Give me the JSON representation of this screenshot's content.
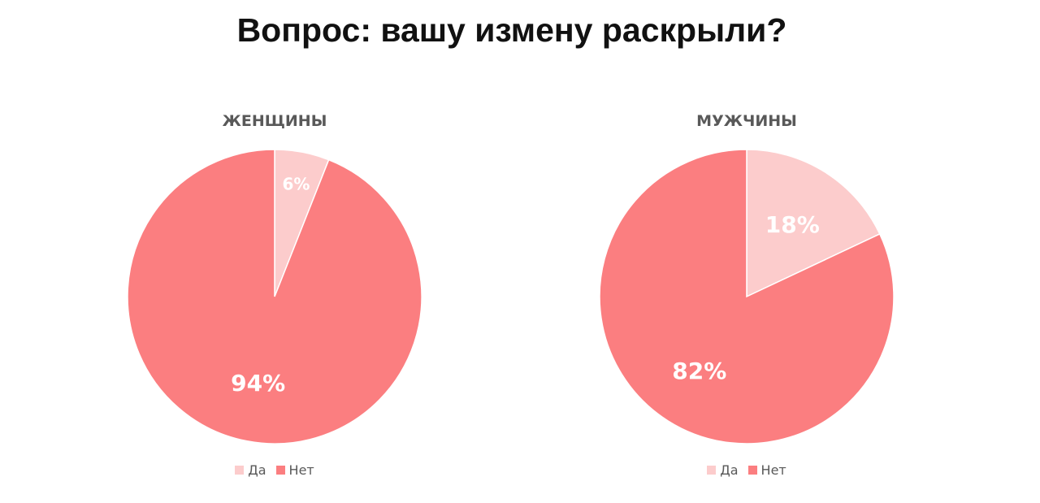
{
  "title": "Вопрос: вашу измену раскрыли?",
  "colors": {
    "yes": "#fccccc",
    "no": "#fb7e80",
    "text_dark": "#111111",
    "text_gray": "#595959"
  },
  "chart_data": [
    {
      "type": "pie",
      "title": "ЖЕНЩИНЫ",
      "categories": [
        "Да",
        "Нет"
      ],
      "values": [
        6,
        94
      ],
      "labels": [
        "6%",
        "94%"
      ],
      "legend_position": "bottom"
    },
    {
      "type": "pie",
      "title": "МУЖЧИНЫ",
      "categories": [
        "Да",
        "Нет"
      ],
      "values": [
        18,
        82
      ],
      "labels": [
        "18%",
        "82%"
      ],
      "legend_position": "bottom"
    }
  ]
}
